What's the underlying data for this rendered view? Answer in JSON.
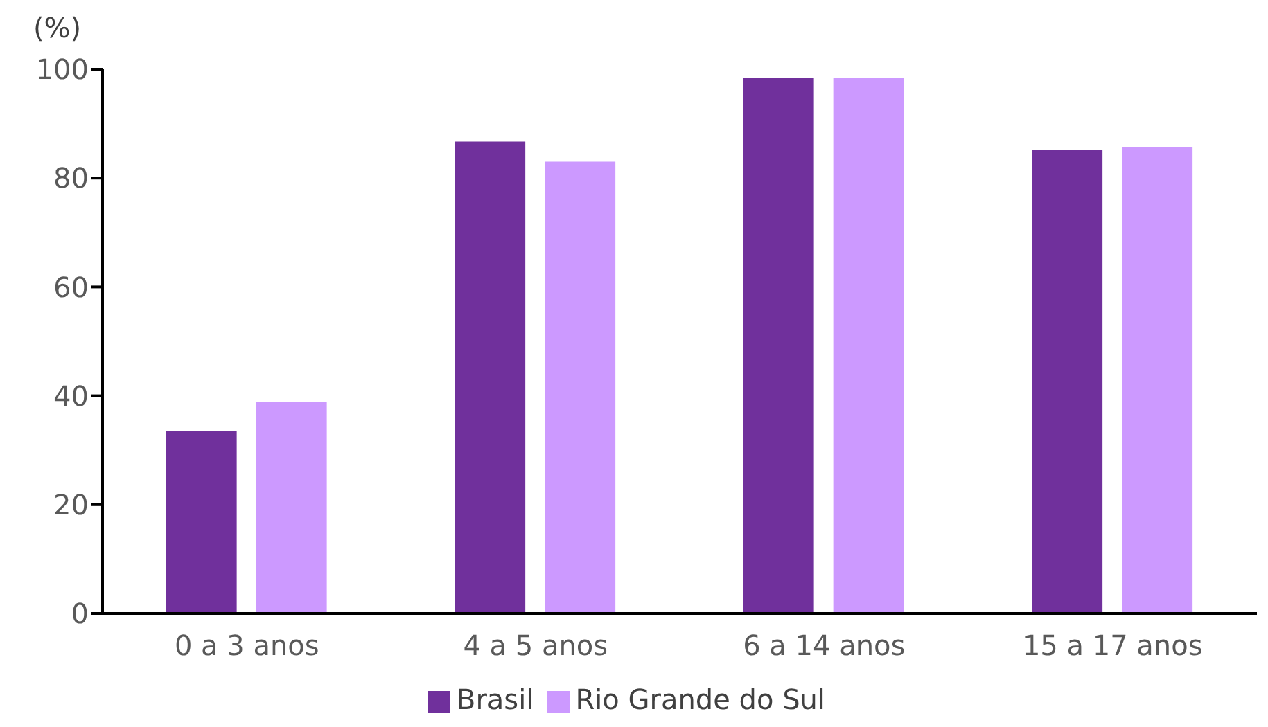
{
  "chart_data": {
    "type": "bar",
    "ylabel": "(%)",
    "categories": [
      "0 a 3 anos",
      "4 a 5 anos",
      "6 a 14 anos",
      "15 a 17 anos"
    ],
    "series": [
      {
        "name": "Brasil",
        "color": "#70309c",
        "values": [
          33.5,
          86.7,
          98.4,
          85.1
        ]
      },
      {
        "name": "Rio Grande do Sul",
        "color": "#cc99ff",
        "values": [
          38.8,
          83.0,
          98.4,
          85.7
        ]
      }
    ],
    "ylim": [
      0,
      100
    ],
    "yticks": [
      0,
      20,
      40,
      60,
      80,
      100
    ],
    "grid": false,
    "legend": "bottom"
  }
}
